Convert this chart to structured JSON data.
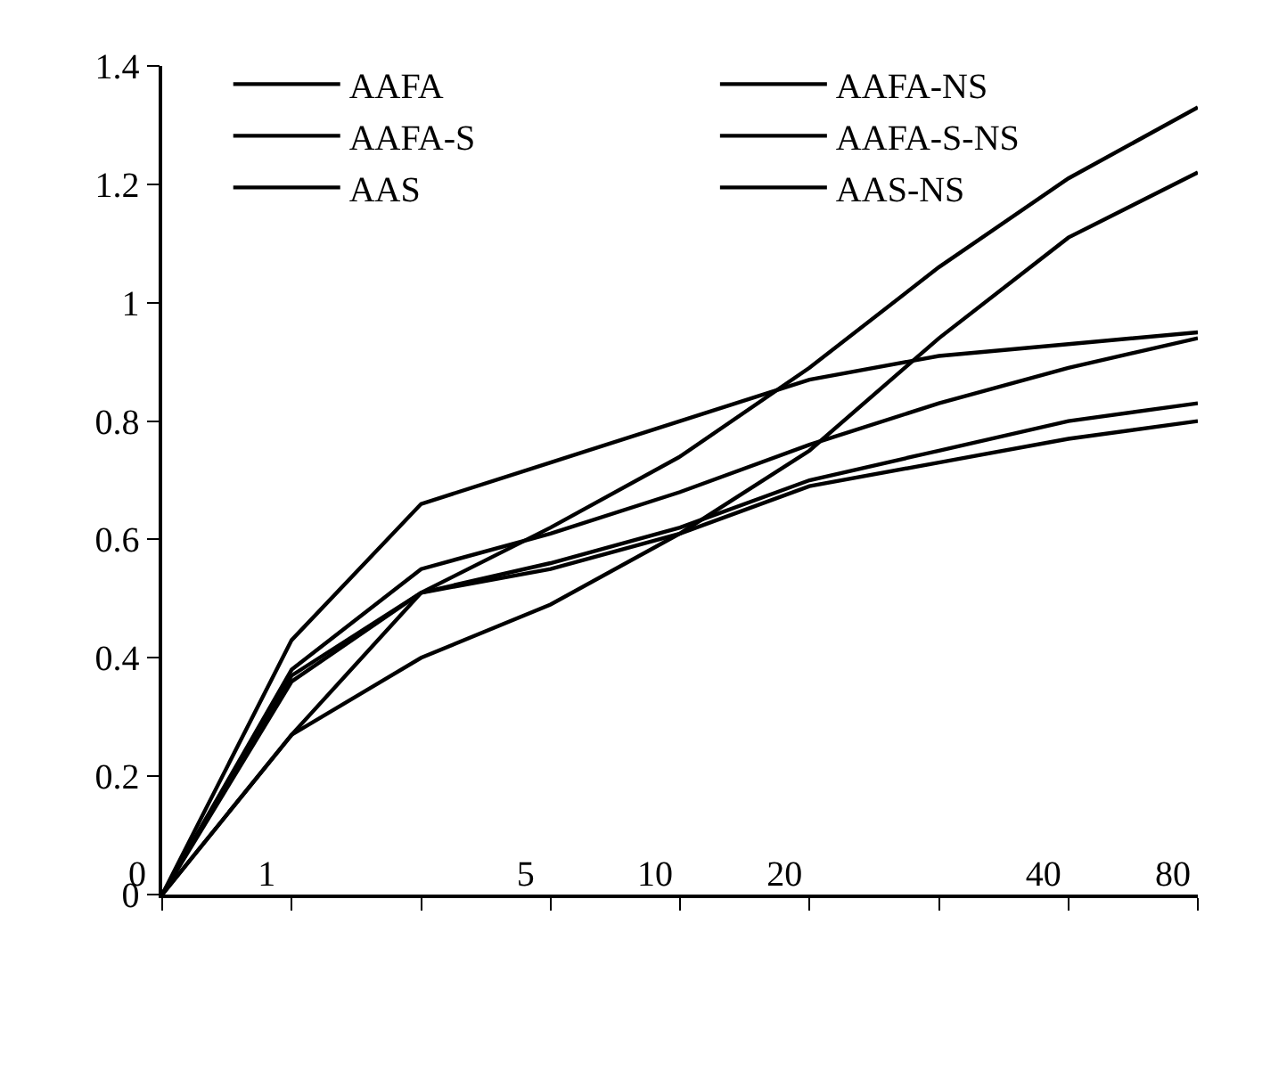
{
  "chart_data": {
    "type": "line",
    "categories": [
      "0",
      "1",
      null,
      "5",
      "10",
      "20",
      null,
      "40",
      "80"
    ],
    "ylim": [
      0,
      1.4
    ],
    "yticks": [
      0,
      0.2,
      0.4,
      0.6,
      0.8,
      1,
      1.2,
      1.4
    ],
    "series": [
      {
        "name": "AAFA",
        "color": "#000000",
        "values": [
          0,
          0.43,
          0.66,
          0.73,
          0.8,
          0.87,
          0.91,
          0.93,
          0.95
        ]
      },
      {
        "name": "AAFA-NS",
        "color": "#000000",
        "values": [
          0,
          0.27,
          0.51,
          0.62,
          0.74,
          0.89,
          1.06,
          1.21,
          1.33
        ]
      },
      {
        "name": "AAFA-S",
        "color": "#000000",
        "values": [
          0,
          0.38,
          0.55,
          0.61,
          0.68,
          0.76,
          0.83,
          0.89,
          0.94
        ]
      },
      {
        "name": "AAFA-S-NS",
        "color": "#000000",
        "values": [
          0,
          0.27,
          0.4,
          0.49,
          0.61,
          0.75,
          0.94,
          1.11,
          1.22
        ]
      },
      {
        "name": "AAS",
        "color": "#000000",
        "values": [
          0,
          0.37,
          0.51,
          0.56,
          0.62,
          0.7,
          0.75,
          0.8,
          0.83
        ]
      },
      {
        "name": "AAS-NS",
        "color": "#000000",
        "values": [
          0,
          0.36,
          0.51,
          0.55,
          0.61,
          0.69,
          0.73,
          0.77,
          0.8
        ]
      }
    ],
    "legend": "top",
    "grid": false,
    "marker": "none",
    "line_style": "solid"
  }
}
